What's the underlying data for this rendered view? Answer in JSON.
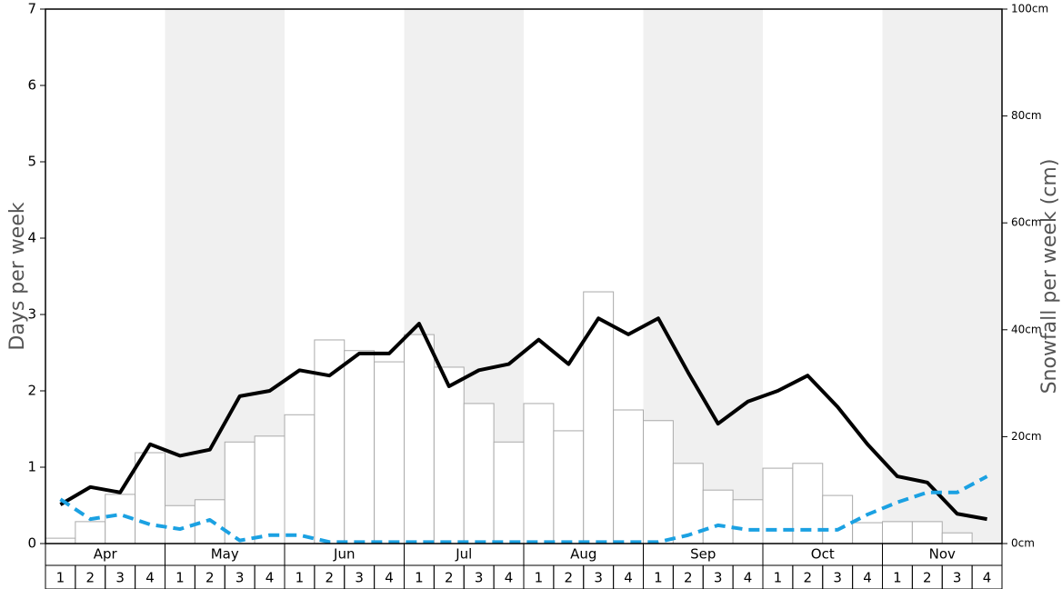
{
  "chart_data": {
    "type": "bar",
    "y_label": "Days per week",
    "y2_label": "Snowfall per week (cm)",
    "months": [
      "Apr",
      "May",
      "Jun",
      "Jul",
      "Aug",
      "Sep",
      "Oct",
      "Nov"
    ],
    "categories": [
      "1",
      "2",
      "3",
      "4",
      "1",
      "2",
      "3",
      "4",
      "1",
      "2",
      "3",
      "4",
      "1",
      "2",
      "3",
      "4",
      "1",
      "2",
      "3",
      "4",
      "1",
      "2",
      "3",
      "4",
      "1",
      "2",
      "3",
      "4",
      "1",
      "2",
      "3",
      "4"
    ],
    "ylim": [
      0,
      7
    ],
    "yticks": [
      0,
      1,
      2,
      3,
      4,
      5,
      6,
      7
    ],
    "y2lim": [
      0,
      100
    ],
    "y2ticks": [
      {
        "value": 0,
        "label": "0cm"
      },
      {
        "value": 20,
        "label": "20cm"
      },
      {
        "value": 40,
        "label": "40cm"
      },
      {
        "value": 60,
        "label": "60cm"
      },
      {
        "value": 80,
        "label": "80cm"
      },
      {
        "value": 100,
        "label": "100cm"
      }
    ],
    "shade_color": "#f0f0f0",
    "series": [
      {
        "type": "bar",
        "axis": "y2",
        "color": "#ffffff",
        "values": [
          1.0,
          4.1,
          9.2,
          17.0,
          7.1,
          8.2,
          19.0,
          20.1,
          24.1,
          38.1,
          36.1,
          34.0,
          39.1,
          33.0,
          26.2,
          19.0,
          26.2,
          21.1,
          47.1,
          25.0,
          23.0,
          15.0,
          10.0,
          8.2,
          14.1,
          15.0,
          9.0,
          3.9,
          4.1,
          4.1,
          2.0,
          0
        ]
      },
      {
        "type": "line",
        "color": "#000000",
        "values": [
          0.51,
          0.74,
          0.67,
          1.3,
          1.15,
          1.23,
          1.93,
          2.0,
          2.27,
          2.2,
          2.49,
          2.49,
          2.88,
          2.06,
          2.27,
          2.35,
          2.67,
          2.35,
          2.95,
          2.74,
          2.95,
          2.24,
          1.57,
          1.86,
          2.0,
          2.2,
          1.79,
          1.3,
          0.88,
          0.8,
          0.39,
          0.32
        ]
      },
      {
        "type": "line",
        "dashed": true,
        "color": "#1ba1e2",
        "values": [
          0.58,
          0.32,
          0.38,
          0.25,
          0.19,
          0.31,
          0.04,
          0.11,
          0.11,
          0.02,
          0.02,
          0.02,
          0.02,
          0.02,
          0.02,
          0.02,
          0.02,
          0.02,
          0.02,
          0.02,
          0.02,
          0.11,
          0.24,
          0.18,
          0.18,
          0.18,
          0.18,
          0.38,
          0.54,
          0.67,
          0.67,
          0.88
        ]
      }
    ]
  }
}
